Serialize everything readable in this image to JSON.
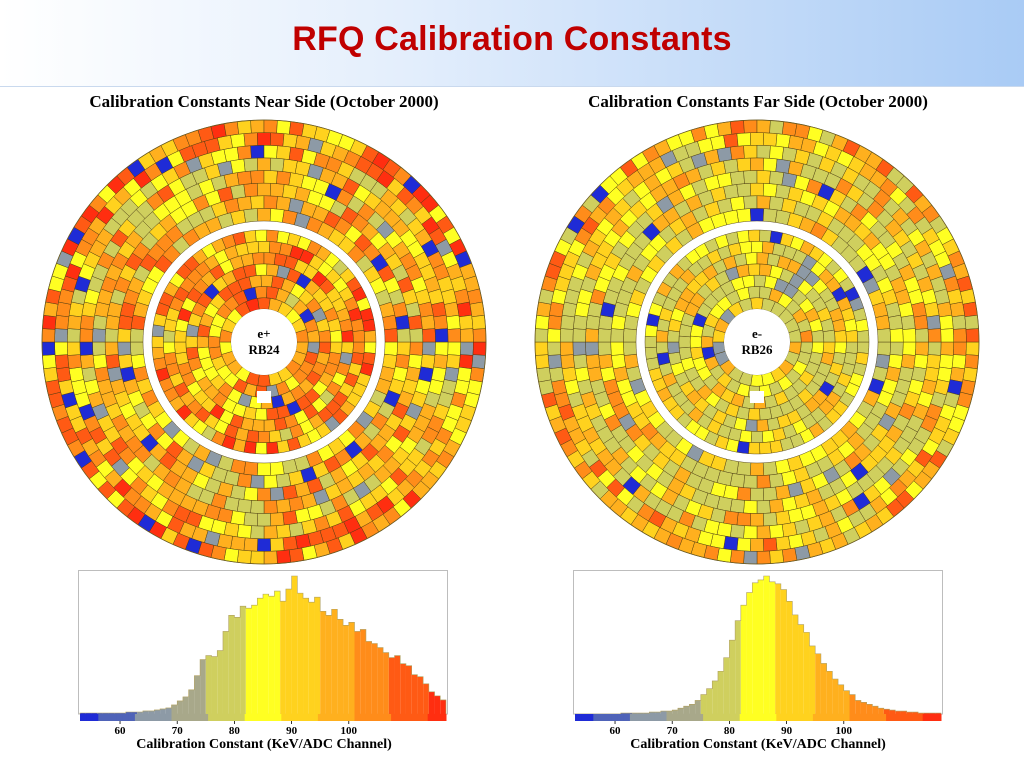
{
  "page": {
    "title": "RFQ Calibration Constants"
  },
  "colors": {
    "scale": [
      "#1f2bd6",
      "#4f63b8",
      "#8d9aa6",
      "#a8a88a",
      "#cfcf5e",
      "#ffff22",
      "#ffd21e",
      "#ffb01e",
      "#ff8c1a",
      "#ff5a14",
      "#ff2e10"
    ],
    "grid": "#4a3a10",
    "title": "#c00000"
  },
  "panels": [
    {
      "title": "Calibration Constants Near Side (October 2000)",
      "center_label": [
        "e+",
        "RB24"
      ],
      "seed": 17,
      "bias": 0.12,
      "blue_rate": 0.035
    },
    {
      "title": "Calibration Constants Far Side (October 2000)",
      "center_label": [
        "e-",
        "RB26"
      ],
      "seed": 91,
      "bias": -0.05,
      "blue_rate": 0.025
    }
  ],
  "chart_data": [
    {
      "type": "bar",
      "subtype": "histogram",
      "title": "",
      "xlabel": "Calibration Constant (KeV/ADC Channel)",
      "ylabel": "",
      "xticks": [
        60,
        70,
        80,
        90,
        100
      ],
      "xlim": [
        53,
        117
      ],
      "bin_width": 1,
      "x_start": 53,
      "values": [
        1,
        1,
        1,
        1,
        1,
        1,
        1,
        1,
        2,
        2,
        2,
        3,
        3,
        4,
        5,
        6,
        9,
        13,
        17,
        24,
        38,
        54,
        58,
        57,
        63,
        82,
        98,
        96,
        107,
        105,
        108,
        115,
        119,
        117,
        122,
        112,
        124,
        137,
        120,
        115,
        111,
        116,
        102,
        98,
        104,
        94,
        88,
        91,
        82,
        84,
        72,
        70,
        66,
        61,
        56,
        58,
        50,
        48,
        39,
        37,
        30,
        22,
        18,
        14
      ]
    },
    {
      "type": "bar",
      "subtype": "histogram",
      "title": "",
      "xlabel": "Calibration Constant (KeV/ADC Channel)",
      "ylabel": "",
      "xticks": [
        60,
        70,
        80,
        90,
        100
      ],
      "xlim": [
        53,
        117
      ],
      "bin_width": 1,
      "x_start": 53,
      "values": [
        0,
        0,
        0,
        0,
        0,
        0,
        0,
        0,
        1,
        1,
        1,
        1,
        1,
        2,
        2,
        3,
        3,
        4,
        6,
        8,
        10,
        14,
        20,
        26,
        34,
        44,
        58,
        76,
        96,
        112,
        125,
        135,
        138,
        142,
        136,
        134,
        128,
        116,
        102,
        92,
        84,
        70,
        62,
        52,
        44,
        36,
        30,
        24,
        20,
        14,
        12,
        10,
        8,
        6,
        5,
        4,
        3,
        3,
        2,
        2,
        1,
        1,
        1,
        1
      ]
    }
  ]
}
